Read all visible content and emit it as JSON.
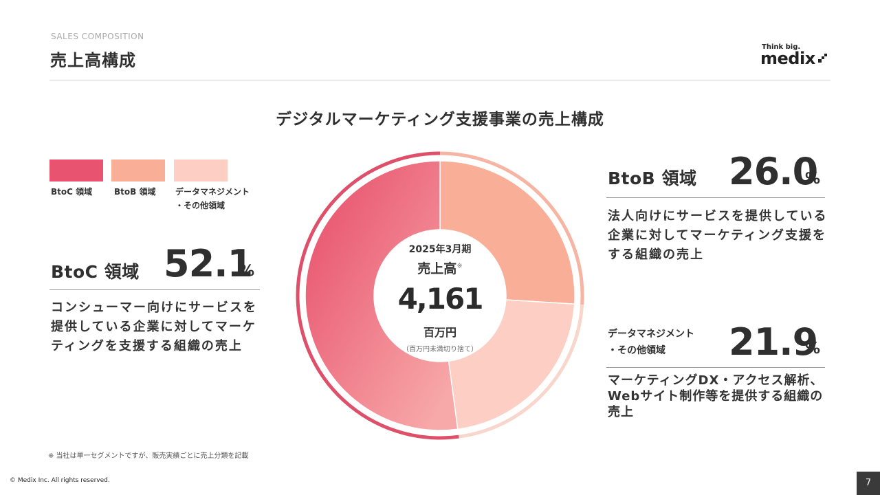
{
  "header": {
    "eyebrow": "SALES COMPOSITION",
    "title": "売上高構成"
  },
  "logo": {
    "tagline": "Think big.",
    "wordmark": "medix"
  },
  "chart_data": {
    "type": "pie",
    "title": "デジタルマーケティング支援事業の売上構成",
    "categories": [
      "BtoC 領域",
      "BtoB 領域",
      "データマネジメント・その他領域"
    ],
    "values": [
      52.1,
      26.0,
      21.9
    ],
    "unit": "%",
    "colors": [
      "#e8546f",
      "#f9ae97",
      "#fdcfc4"
    ],
    "center": {
      "period": "2025年3月期",
      "label": "売上高",
      "mark": "※",
      "value": "4,161",
      "unit": "百万円",
      "note": "（百万円未満切り捨て）"
    }
  },
  "legend": [
    {
      "label": "BtoC 領域",
      "color": "#e8546f"
    },
    {
      "label": "BtoB 領域",
      "color": "#f9ae97"
    },
    {
      "label_line1": "データマネジメント",
      "label_line2": "・その他領域",
      "color": "#fdcfc4"
    }
  ],
  "segments": {
    "btoc": {
      "name": "BtoC 領域",
      "value": "52.1",
      "unit": "%",
      "desc": [
        "コンシューマー向けにサービスを",
        "提供している企業に対してマーケ",
        "ティングを支援する組織の売上"
      ]
    },
    "btob": {
      "name": "BtoB 領域",
      "value": "26.0",
      "unit": "%",
      "desc": [
        "法人向けにサービスを提供している",
        "企業に対してマーケティング支援を",
        "する組織の売上"
      ]
    },
    "other": {
      "name_line1": "データマネジメント",
      "name_line2": "・その他領域",
      "value": "21.9",
      "unit": "%",
      "desc": [
        "マーケティングDX・アクセス解析、",
        "Webサイト制作等を提供する組織の",
        "売上"
      ]
    }
  },
  "footer": {
    "footnote": "※ 当社は単一セグメントですが、販売実績ごとに売上分類を記載",
    "copyright": "© Medix Inc. All rights reserved.",
    "page_number": "7"
  }
}
